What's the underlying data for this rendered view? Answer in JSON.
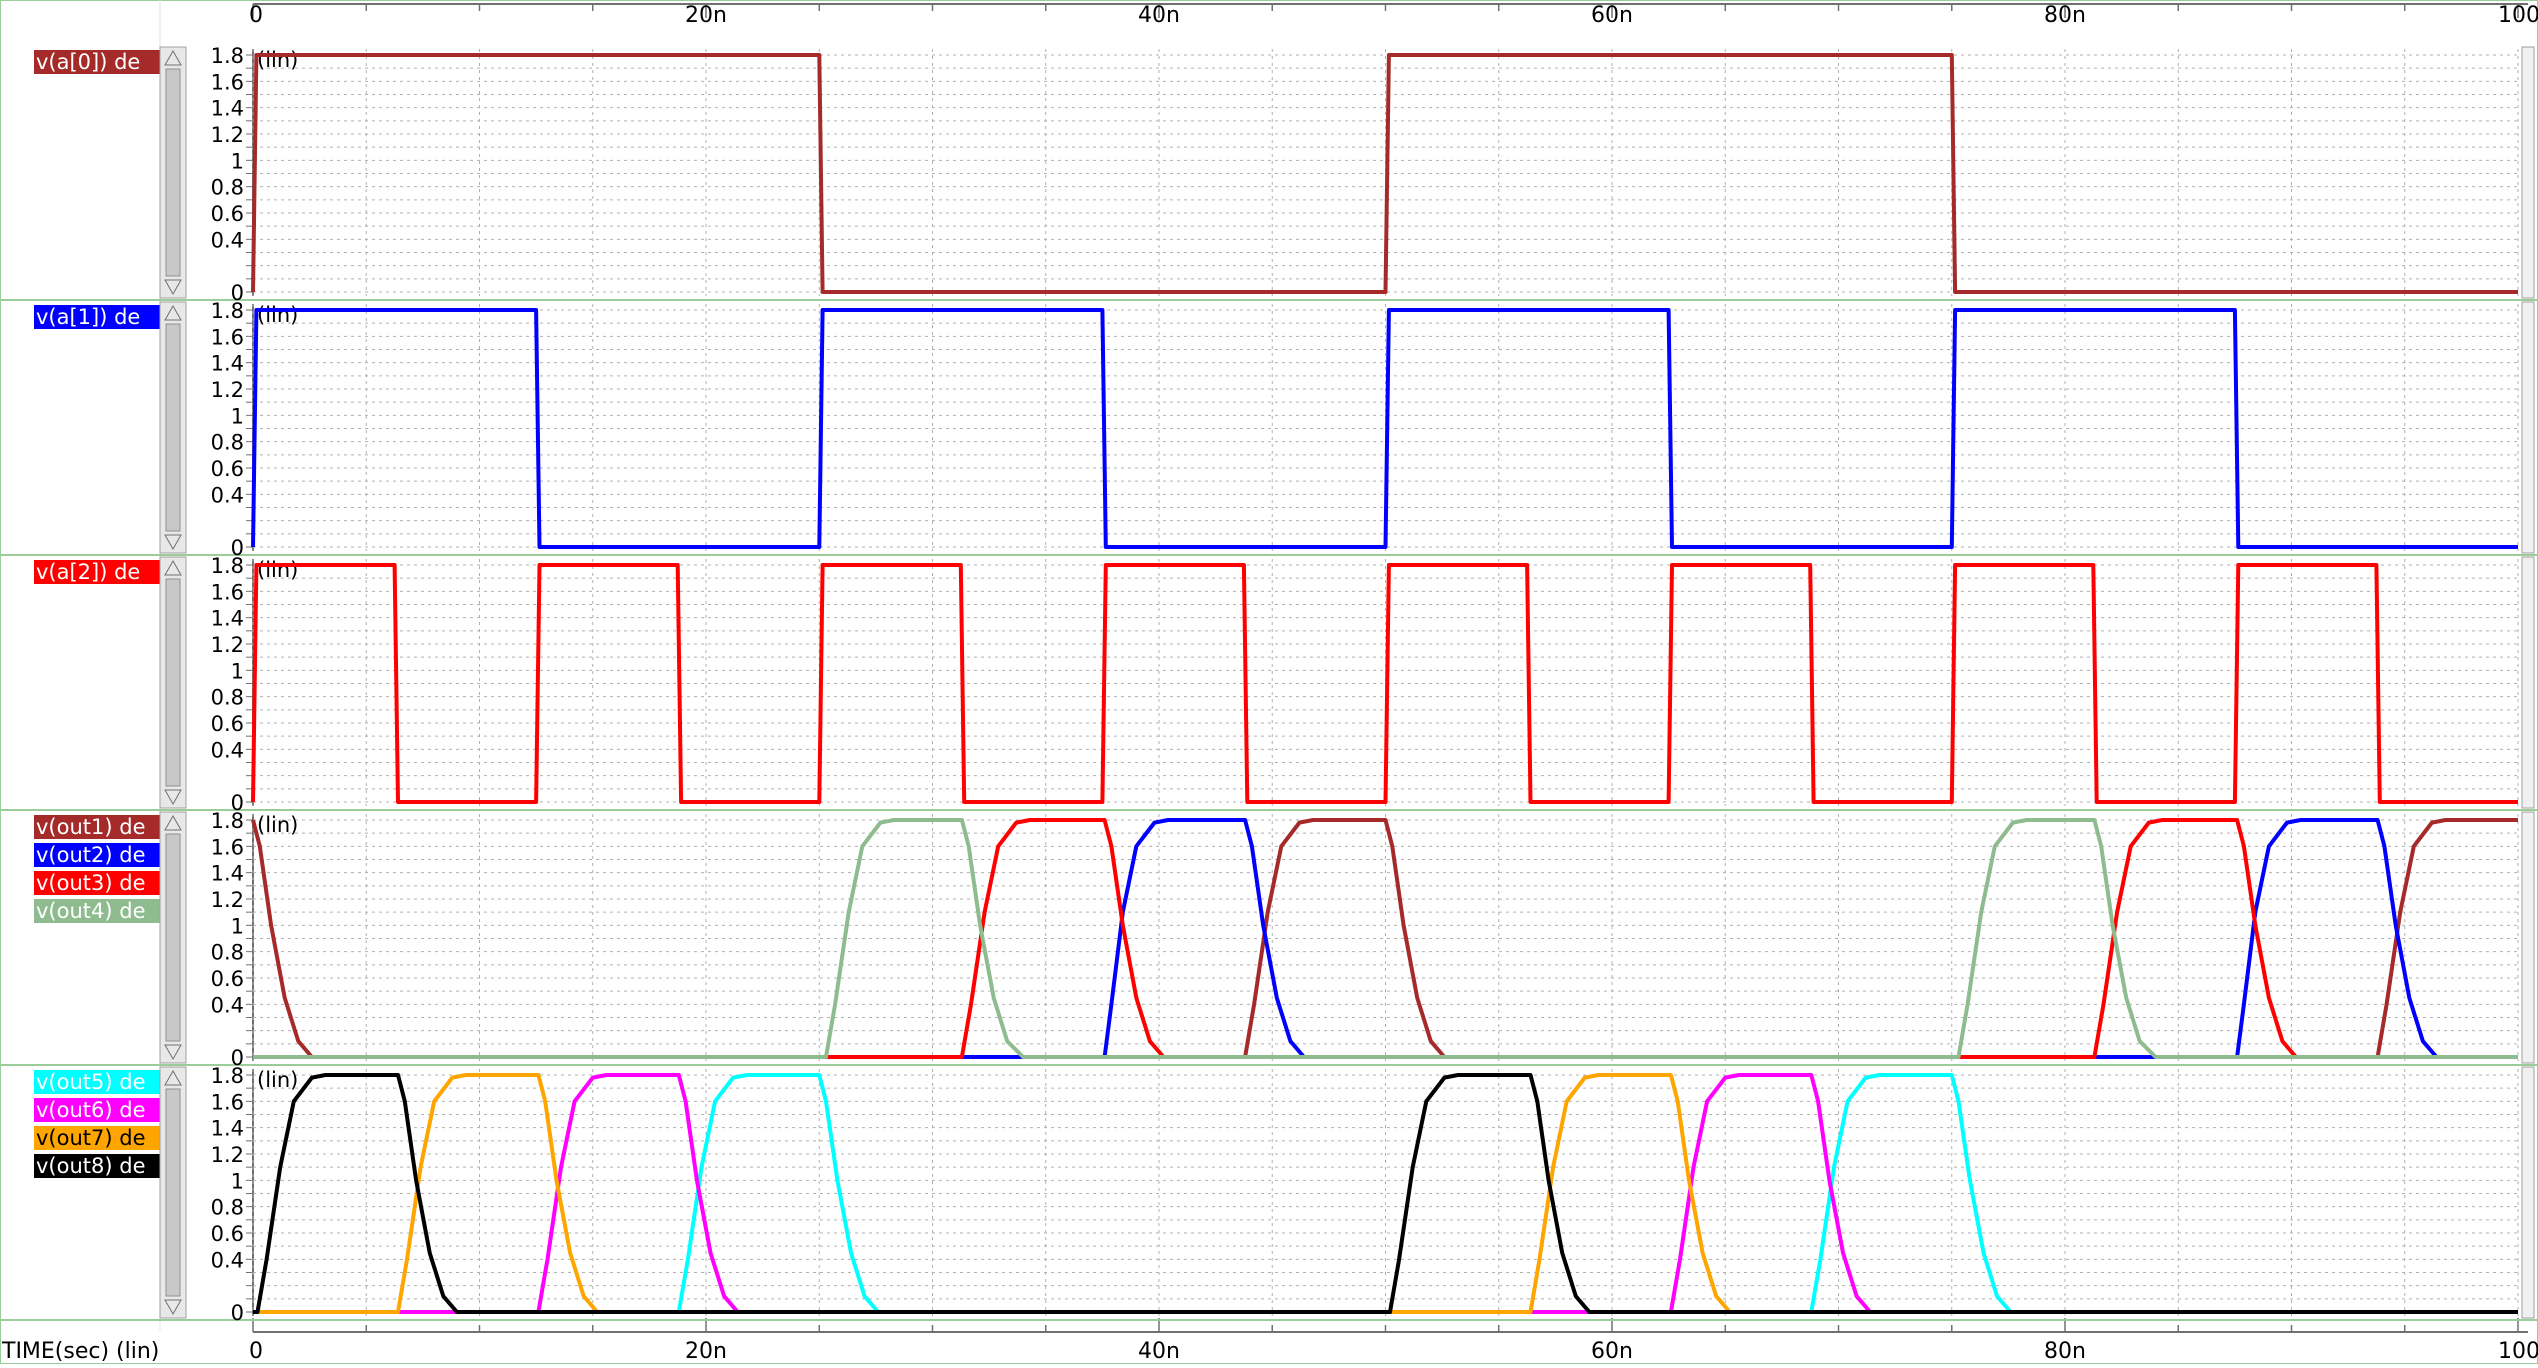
{
  "x_axis": {
    "top_ticks": [
      "0",
      "20n",
      "40n",
      "60n",
      "80n",
      "100"
    ],
    "bottom_ticks": [
      "0",
      "20n",
      "40n",
      "60n",
      "80n",
      "100"
    ],
    "axis_label": "TIME(sec) (lin)"
  },
  "colors": {
    "a0": "#a52a2a",
    "a1": "#0000ff",
    "a2": "#ff0000",
    "out1": "#a52a2a",
    "out2": "#0000ff",
    "out3": "#ff0000",
    "out4": "#8fbc8f",
    "out5": "#00ffff",
    "out6": "#ff00ff",
    "out7": "#ffa500",
    "out8": "#000000",
    "grid": "#b0b0b0",
    "panel_border": "#9acd9a",
    "scrollbar": "#c8c8c8"
  },
  "chart_data": [
    {
      "type": "line",
      "title": "",
      "scale_label": "(lin)",
      "xlabel": "TIME(sec) (lin)",
      "xlim": [
        0,
        100
      ],
      "x_unit": "ns",
      "ylim": [
        0,
        1.8
      ],
      "yticks": [
        "0",
        "0.4",
        "0.6",
        "0.8",
        "1",
        "1.2",
        "1.4",
        "1.6",
        "1.8"
      ],
      "series": [
        {
          "name": "v(a[0]) de",
          "color_key": "a0",
          "label_text_color": "#ffffff",
          "x": [
            0,
            0.15,
            25,
            25.15,
            50,
            50.15,
            75,
            75.15,
            100
          ],
          "y": [
            0,
            1.8,
            1.8,
            0,
            0,
            1.8,
            1.8,
            0,
            0
          ]
        }
      ]
    },
    {
      "type": "line",
      "title": "",
      "scale_label": "(lin)",
      "xlabel": "TIME(sec) (lin)",
      "xlim": [
        0,
        100
      ],
      "x_unit": "ns",
      "ylim": [
        0,
        1.8
      ],
      "yticks": [
        "0",
        "0.4",
        "0.6",
        "0.8",
        "1",
        "1.2",
        "1.4",
        "1.6",
        "1.8"
      ],
      "series": [
        {
          "name": "v(a[1]) de",
          "color_key": "a1",
          "label_text_color": "#ffffff",
          "x": [
            0,
            0.15,
            12.5,
            12.65,
            25,
            25.15,
            37.5,
            37.65,
            50,
            50.15,
            62.5,
            62.65,
            75,
            75.15,
            87.5,
            87.65,
            100
          ],
          "y": [
            0,
            1.8,
            1.8,
            0,
            0,
            1.8,
            1.8,
            0,
            0,
            1.8,
            1.8,
            0,
            0,
            1.8,
            1.8,
            0,
            0
          ]
        }
      ]
    },
    {
      "type": "line",
      "title": "",
      "scale_label": "(lin)",
      "xlabel": "TIME(sec) (lin)",
      "xlim": [
        0,
        100
      ],
      "x_unit": "ns",
      "ylim": [
        0,
        1.8
      ],
      "yticks": [
        "0",
        "0.4",
        "0.6",
        "0.8",
        "1",
        "1.2",
        "1.4",
        "1.6",
        "1.8"
      ],
      "series": [
        {
          "name": "v(a[2]) de",
          "color_key": "a2",
          "label_text_color": "#ffffff",
          "x": [
            0,
            0.15,
            6.25,
            6.4,
            12.5,
            12.65,
            18.75,
            18.9,
            25,
            25.15,
            31.25,
            31.4,
            37.5,
            37.65,
            43.75,
            43.9,
            50,
            50.15,
            56.25,
            56.4,
            62.5,
            62.65,
            68.75,
            68.9,
            75,
            75.15,
            81.25,
            81.4,
            87.5,
            87.65,
            93.75,
            93.9,
            100
          ],
          "y": [
            0,
            1.8,
            1.8,
            0,
            0,
            1.8,
            1.8,
            0,
            0,
            1.8,
            1.8,
            0,
            0,
            1.8,
            1.8,
            0,
            0,
            1.8,
            1.8,
            0,
            0,
            1.8,
            1.8,
            0,
            0,
            1.8,
            1.8,
            0,
            0,
            1.8,
            1.8,
            0,
            0
          ]
        }
      ]
    },
    {
      "type": "line",
      "title": "",
      "scale_label": "(lin)",
      "xlabel": "TIME(sec) (lin)",
      "xlim": [
        0,
        100
      ],
      "x_unit": "ns",
      "ylim": [
        0,
        1.8
      ],
      "yticks": [
        "0",
        "0.4",
        "0.6",
        "0.8",
        "1",
        "1.2",
        "1.4",
        "1.6",
        "1.8"
      ],
      "series": [
        {
          "name": "v(out1) de",
          "color_key": "out1",
          "label_text_color": "#ffffff",
          "x": [
            0,
            0.3,
            0.8,
            1.4,
            2.0,
            2.6,
            43.8,
            44.2,
            44.8,
            45.4,
            46.2,
            46.8,
            48.5,
            50,
            50.3,
            50.8,
            51.4,
            52.0,
            52.6,
            93.8,
            94.2,
            94.8,
            95.4,
            96.2,
            96.8,
            100
          ],
          "y": [
            1.8,
            1.6,
            1.0,
            0.45,
            0.12,
            0,
            0,
            0.4,
            1.1,
            1.6,
            1.78,
            1.8,
            1.8,
            1.8,
            1.6,
            1.0,
            0.45,
            0.12,
            0,
            0,
            0.4,
            1.1,
            1.6,
            1.78,
            1.8,
            1.8
          ]
        },
        {
          "name": "v(out2) de",
          "color_key": "out2",
          "label_text_color": "#ffffff",
          "x": [
            0,
            37.6,
            37.9,
            38.4,
            39.0,
            39.8,
            40.4,
            43.8,
            44.1,
            44.6,
            45.2,
            45.8,
            46.4,
            87.6,
            87.9,
            88.4,
            89.0,
            89.8,
            90.4,
            93.8,
            94.1,
            94.6,
            95.2,
            95.8,
            96.4,
            100
          ],
          "y": [
            0,
            0,
            0.4,
            1.1,
            1.6,
            1.78,
            1.8,
            1.8,
            1.6,
            1.0,
            0.45,
            0.12,
            0,
            0,
            0.4,
            1.1,
            1.6,
            1.78,
            1.8,
            1.8,
            1.6,
            1.0,
            0.45,
            0.12,
            0,
            0
          ]
        },
        {
          "name": "v(out3) de",
          "color_key": "out3",
          "label_text_color": "#ffffff",
          "x": [
            0,
            31.3,
            31.7,
            32.3,
            32.9,
            33.7,
            34.3,
            37.6,
            37.9,
            38.4,
            39.0,
            39.6,
            40.2,
            81.3,
            81.7,
            82.3,
            82.9,
            83.7,
            84.3,
            87.6,
            87.9,
            88.4,
            89.0,
            89.6,
            90.2,
            100
          ],
          "y": [
            0,
            0,
            0.4,
            1.1,
            1.6,
            1.78,
            1.8,
            1.8,
            1.6,
            1.0,
            0.45,
            0.12,
            0,
            0,
            0.4,
            1.1,
            1.6,
            1.78,
            1.8,
            1.8,
            1.6,
            1.0,
            0.45,
            0.12,
            0,
            0
          ]
        },
        {
          "name": "v(out4) de",
          "color_key": "out4",
          "label_text_color": "#ffffff",
          "x": [
            0,
            25.3,
            25.7,
            26.3,
            26.9,
            27.7,
            28.3,
            31.3,
            31.6,
            32.1,
            32.7,
            33.3,
            34.0,
            75.3,
            75.7,
            76.3,
            76.9,
            77.7,
            78.3,
            81.3,
            81.6,
            82.1,
            82.7,
            83.3,
            84.0,
            100
          ],
          "y": [
            0,
            0,
            0.4,
            1.1,
            1.6,
            1.78,
            1.8,
            1.8,
            1.6,
            1.0,
            0.45,
            0.12,
            0,
            0,
            0.4,
            1.1,
            1.6,
            1.78,
            1.8,
            1.8,
            1.6,
            1.0,
            0.45,
            0.12,
            0,
            0
          ]
        }
      ]
    },
    {
      "type": "line",
      "title": "",
      "scale_label": "(lin)",
      "xlabel": "TIME(sec) (lin)",
      "xlim": [
        0,
        100
      ],
      "x_unit": "ns",
      "ylim": [
        0,
        1.8
      ],
      "yticks": [
        "0",
        "0.4",
        "0.6",
        "0.8",
        "1",
        "1.2",
        "1.4",
        "1.6",
        "1.8"
      ],
      "series": [
        {
          "name": "v(out5) de",
          "color_key": "out5",
          "label_text_color": "#ffffff",
          "x": [
            0,
            18.8,
            19.2,
            19.8,
            20.4,
            21.2,
            21.8,
            25.0,
            25.3,
            25.8,
            26.4,
            27.0,
            27.6,
            68.8,
            69.2,
            69.8,
            70.4,
            71.2,
            71.8,
            75.0,
            75.3,
            75.8,
            76.4,
            77.0,
            77.6,
            100
          ],
          "y": [
            0,
            0,
            0.4,
            1.1,
            1.6,
            1.78,
            1.8,
            1.8,
            1.6,
            1.0,
            0.45,
            0.12,
            0,
            0,
            0.4,
            1.1,
            1.6,
            1.78,
            1.8,
            1.8,
            1.6,
            1.0,
            0.45,
            0.12,
            0,
            0
          ]
        },
        {
          "name": "v(out6) de",
          "color_key": "out6",
          "label_text_color": "#ffffff",
          "x": [
            0,
            12.6,
            13.0,
            13.6,
            14.2,
            15.0,
            15.6,
            18.8,
            19.1,
            19.6,
            20.2,
            20.8,
            21.4,
            62.6,
            63.0,
            63.6,
            64.2,
            65.0,
            65.6,
            68.8,
            69.1,
            69.6,
            70.2,
            70.8,
            71.4,
            100
          ],
          "y": [
            0,
            0,
            0.4,
            1.1,
            1.6,
            1.78,
            1.8,
            1.8,
            1.6,
            1.0,
            0.45,
            0.12,
            0,
            0,
            0.4,
            1.1,
            1.6,
            1.78,
            1.8,
            1.8,
            1.6,
            1.0,
            0.45,
            0.12,
            0,
            0
          ]
        },
        {
          "name": "v(out7) de",
          "color_key": "out7",
          "label_text_color": "#000000",
          "x": [
            0,
            6.4,
            6.8,
            7.4,
            8.0,
            8.8,
            9.4,
            12.6,
            12.9,
            13.4,
            14.0,
            14.6,
            15.2,
            56.4,
            56.8,
            57.4,
            58.0,
            58.8,
            59.4,
            62.6,
            62.9,
            63.4,
            64.0,
            64.6,
            65.2,
            100
          ],
          "y": [
            0,
            0,
            0.4,
            1.1,
            1.6,
            1.78,
            1.8,
            1.8,
            1.6,
            1.0,
            0.45,
            0.12,
            0,
            0,
            0.4,
            1.1,
            1.6,
            1.78,
            1.8,
            1.8,
            1.6,
            1.0,
            0.45,
            0.12,
            0,
            0
          ]
        },
        {
          "name": "v(out8) de",
          "color_key": "out8",
          "label_text_color": "#ffffff",
          "x": [
            0,
            0.2,
            0.6,
            1.2,
            1.8,
            2.6,
            3.2,
            6.4,
            6.7,
            7.2,
            7.8,
            8.4,
            9.0,
            50.2,
            50.6,
            51.2,
            51.8,
            52.6,
            53.2,
            56.4,
            56.7,
            57.2,
            57.8,
            58.4,
            59.0,
            100
          ],
          "y": [
            0,
            0,
            0.4,
            1.1,
            1.6,
            1.78,
            1.8,
            1.8,
            1.6,
            1.0,
            0.45,
            0.12,
            0,
            0,
            0.4,
            1.1,
            1.6,
            1.78,
            1.8,
            1.8,
            1.6,
            1.0,
            0.45,
            0.12,
            0,
            0
          ]
        }
      ]
    }
  ]
}
